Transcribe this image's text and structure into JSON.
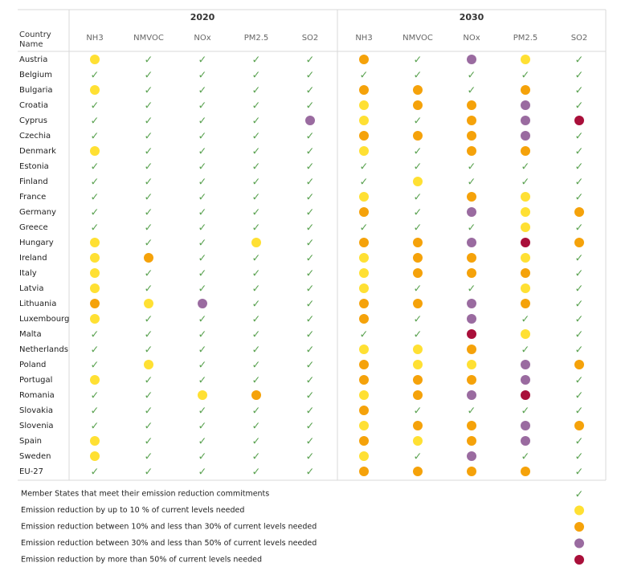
{
  "chart_data": {
    "type": "table",
    "header_label": "Country Name",
    "years": [
      "2020",
      "2030"
    ],
    "pollutants": [
      "NH3",
      "NMVOC",
      "NOx",
      "PM2.5",
      "SO2"
    ],
    "codes": {
      "c": "Member States that meet their emission reduction commitments",
      "y": "Emission reduction by up to 10 % of current levels needed",
      "o": "Emission reduction between 10% and less than 30% of current levels needed",
      "p": "Emission reduction between 30% and less than 50% of current levels needed",
      "r": "Emission reduction by more than 50% of current levels needed"
    },
    "rows": [
      {
        "country": "Austria",
        "y2020": [
          "y",
          "c",
          "c",
          "c",
          "c"
        ],
        "y2030": [
          "o",
          "c",
          "p",
          "y",
          "c"
        ]
      },
      {
        "country": "Belgium",
        "y2020": [
          "c",
          "c",
          "c",
          "c",
          "c"
        ],
        "y2030": [
          "c",
          "c",
          "c",
          "c",
          "c"
        ]
      },
      {
        "country": "Bulgaria",
        "y2020": [
          "y",
          "c",
          "c",
          "c",
          "c"
        ],
        "y2030": [
          "o",
          "o",
          "c",
          "o",
          "c"
        ]
      },
      {
        "country": "Croatia",
        "y2020": [
          "c",
          "c",
          "c",
          "c",
          "c"
        ],
        "y2030": [
          "y",
          "o",
          "o",
          "p",
          "c"
        ]
      },
      {
        "country": "Cyprus",
        "y2020": [
          "c",
          "c",
          "c",
          "c",
          "p"
        ],
        "y2030": [
          "y",
          "c",
          "o",
          "p",
          "r"
        ]
      },
      {
        "country": "Czechia",
        "y2020": [
          "c",
          "c",
          "c",
          "c",
          "c"
        ],
        "y2030": [
          "o",
          "o",
          "o",
          "p",
          "c"
        ]
      },
      {
        "country": "Denmark",
        "y2020": [
          "y",
          "c",
          "c",
          "c",
          "c"
        ],
        "y2030": [
          "y",
          "c",
          "o",
          "o",
          "c"
        ]
      },
      {
        "country": "Estonia",
        "y2020": [
          "c",
          "c",
          "c",
          "c",
          "c"
        ],
        "y2030": [
          "c",
          "c",
          "c",
          "c",
          "c"
        ]
      },
      {
        "country": "Finland",
        "y2020": [
          "c",
          "c",
          "c",
          "c",
          "c"
        ],
        "y2030": [
          "c",
          "y",
          "c",
          "c",
          "c"
        ]
      },
      {
        "country": "France",
        "y2020": [
          "c",
          "c",
          "c",
          "c",
          "c"
        ],
        "y2030": [
          "y",
          "c",
          "o",
          "y",
          "c"
        ]
      },
      {
        "country": "Germany",
        "y2020": [
          "c",
          "c",
          "c",
          "c",
          "c"
        ],
        "y2030": [
          "o",
          "c",
          "p",
          "y",
          "o"
        ]
      },
      {
        "country": "Greece",
        "y2020": [
          "c",
          "c",
          "c",
          "c",
          "c"
        ],
        "y2030": [
          "c",
          "c",
          "c",
          "y",
          "c"
        ]
      },
      {
        "country": "Hungary",
        "y2020": [
          "y",
          "c",
          "c",
          "y",
          "c"
        ],
        "y2030": [
          "o",
          "o",
          "p",
          "r",
          "o"
        ]
      },
      {
        "country": "Ireland",
        "y2020": [
          "y",
          "o",
          "c",
          "c",
          "c"
        ],
        "y2030": [
          "y",
          "o",
          "o",
          "y",
          "c"
        ]
      },
      {
        "country": "Italy",
        "y2020": [
          "y",
          "c",
          "c",
          "c",
          "c"
        ],
        "y2030": [
          "y",
          "o",
          "o",
          "o",
          "c"
        ]
      },
      {
        "country": "Latvia",
        "y2020": [
          "y",
          "c",
          "c",
          "c",
          "c"
        ],
        "y2030": [
          "y",
          "c",
          "c",
          "y",
          "c"
        ]
      },
      {
        "country": "Lithuania",
        "y2020": [
          "o",
          "y",
          "p",
          "c",
          "c"
        ],
        "y2030": [
          "o",
          "o",
          "p",
          "o",
          "c"
        ]
      },
      {
        "country": "Luxembourg",
        "y2020": [
          "y",
          "c",
          "c",
          "c",
          "c"
        ],
        "y2030": [
          "o",
          "c",
          "p",
          "c",
          "c"
        ]
      },
      {
        "country": "Malta",
        "y2020": [
          "c",
          "c",
          "c",
          "c",
          "c"
        ],
        "y2030": [
          "c",
          "c",
          "r",
          "y",
          "c"
        ]
      },
      {
        "country": "Netherlands",
        "y2020": [
          "c",
          "c",
          "c",
          "c",
          "c"
        ],
        "y2030": [
          "y",
          "y",
          "o",
          "c",
          "c"
        ]
      },
      {
        "country": "Poland",
        "y2020": [
          "c",
          "y",
          "c",
          "c",
          "c"
        ],
        "y2030": [
          "o",
          "y",
          "y",
          "p",
          "o"
        ]
      },
      {
        "country": "Portugal",
        "y2020": [
          "y",
          "c",
          "c",
          "c",
          "c"
        ],
        "y2030": [
          "o",
          "o",
          "o",
          "p",
          "c"
        ]
      },
      {
        "country": "Romania",
        "y2020": [
          "c",
          "c",
          "y",
          "o",
          "c"
        ],
        "y2030": [
          "y",
          "o",
          "p",
          "r",
          "c"
        ]
      },
      {
        "country": "Slovakia",
        "y2020": [
          "c",
          "c",
          "c",
          "c",
          "c"
        ],
        "y2030": [
          "o",
          "c",
          "c",
          "c",
          "c"
        ]
      },
      {
        "country": "Slovenia",
        "y2020": [
          "c",
          "c",
          "c",
          "c",
          "c"
        ],
        "y2030": [
          "y",
          "o",
          "o",
          "p",
          "o"
        ]
      },
      {
        "country": "Spain",
        "y2020": [
          "y",
          "c",
          "c",
          "c",
          "c"
        ],
        "y2030": [
          "o",
          "y",
          "o",
          "p",
          "c"
        ]
      },
      {
        "country": "Sweden",
        "y2020": [
          "y",
          "c",
          "c",
          "c",
          "c"
        ],
        "y2030": [
          "y",
          "c",
          "p",
          "c",
          "c"
        ]
      },
      {
        "country": "EU-27",
        "y2020": [
          "c",
          "c",
          "c",
          "c",
          "c"
        ],
        "y2030": [
          "o",
          "o",
          "o",
          "o",
          "c"
        ]
      }
    ],
    "legend": [
      "c",
      "y",
      "o",
      "p",
      "r"
    ],
    "colors": {
      "c": "#59a14f",
      "y": "#ffe033",
      "o": "#f5a20a",
      "p": "#9a6ba0",
      "r": "#a90f3a",
      "grid": "#d9d9d9"
    }
  }
}
